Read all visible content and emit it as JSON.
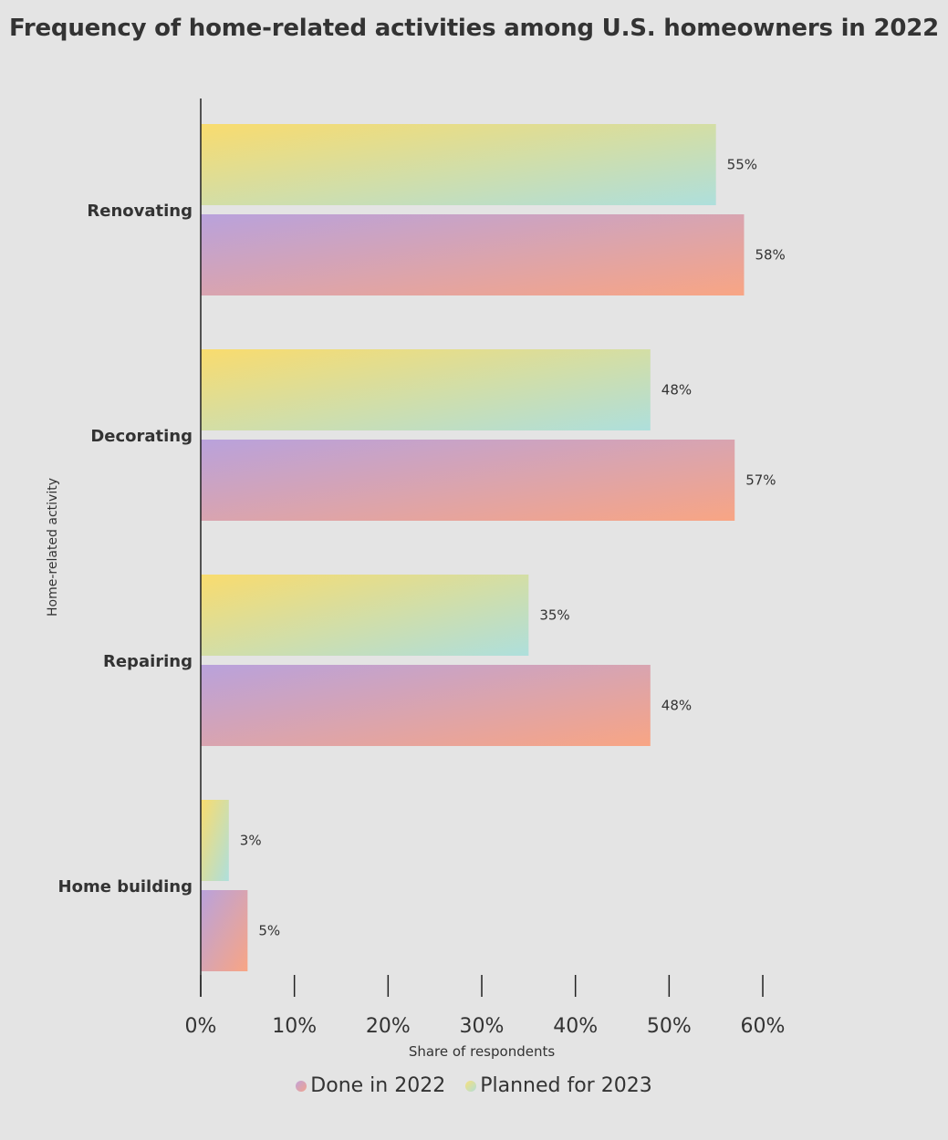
{
  "chart_data": {
    "type": "bar",
    "orientation": "horizontal",
    "title": "Frequency of home-related activities among U.S. homeowners in 2022",
    "xlabel": "Share of respondents",
    "ylabel": "Home-related activity",
    "categories": [
      "Renovating",
      "Decorating",
      "Repairing",
      "Home building"
    ],
    "series": [
      {
        "name": "Planned for 2023",
        "values": [
          55,
          48,
          35,
          3
        ],
        "labels": [
          "55%",
          "48%",
          "35%",
          "3%"
        ],
        "gradient": [
          "#f9dc6e",
          "#aedfdc"
        ]
      },
      {
        "name": "Done in 2022",
        "values": [
          58,
          57,
          48,
          5
        ],
        "labels": [
          "58%",
          "57%",
          "48%",
          "5%"
        ],
        "gradient": [
          "#b9a2dc",
          "#f8a584"
        ]
      }
    ],
    "xlim": [
      0,
      60
    ],
    "xticks": [
      0,
      10,
      20,
      30,
      40,
      50,
      60
    ],
    "xtick_labels": [
      "0%",
      "10%",
      "20%",
      "30%",
      "40%",
      "50%",
      "60%"
    ],
    "grid": false,
    "legend_position": "bottom-center",
    "legend": [
      "Done in 2022",
      "Planned for 2023"
    ]
  },
  "colors": {
    "background": "#e4e4e4",
    "text": "#333333",
    "axis": "#222222"
  }
}
